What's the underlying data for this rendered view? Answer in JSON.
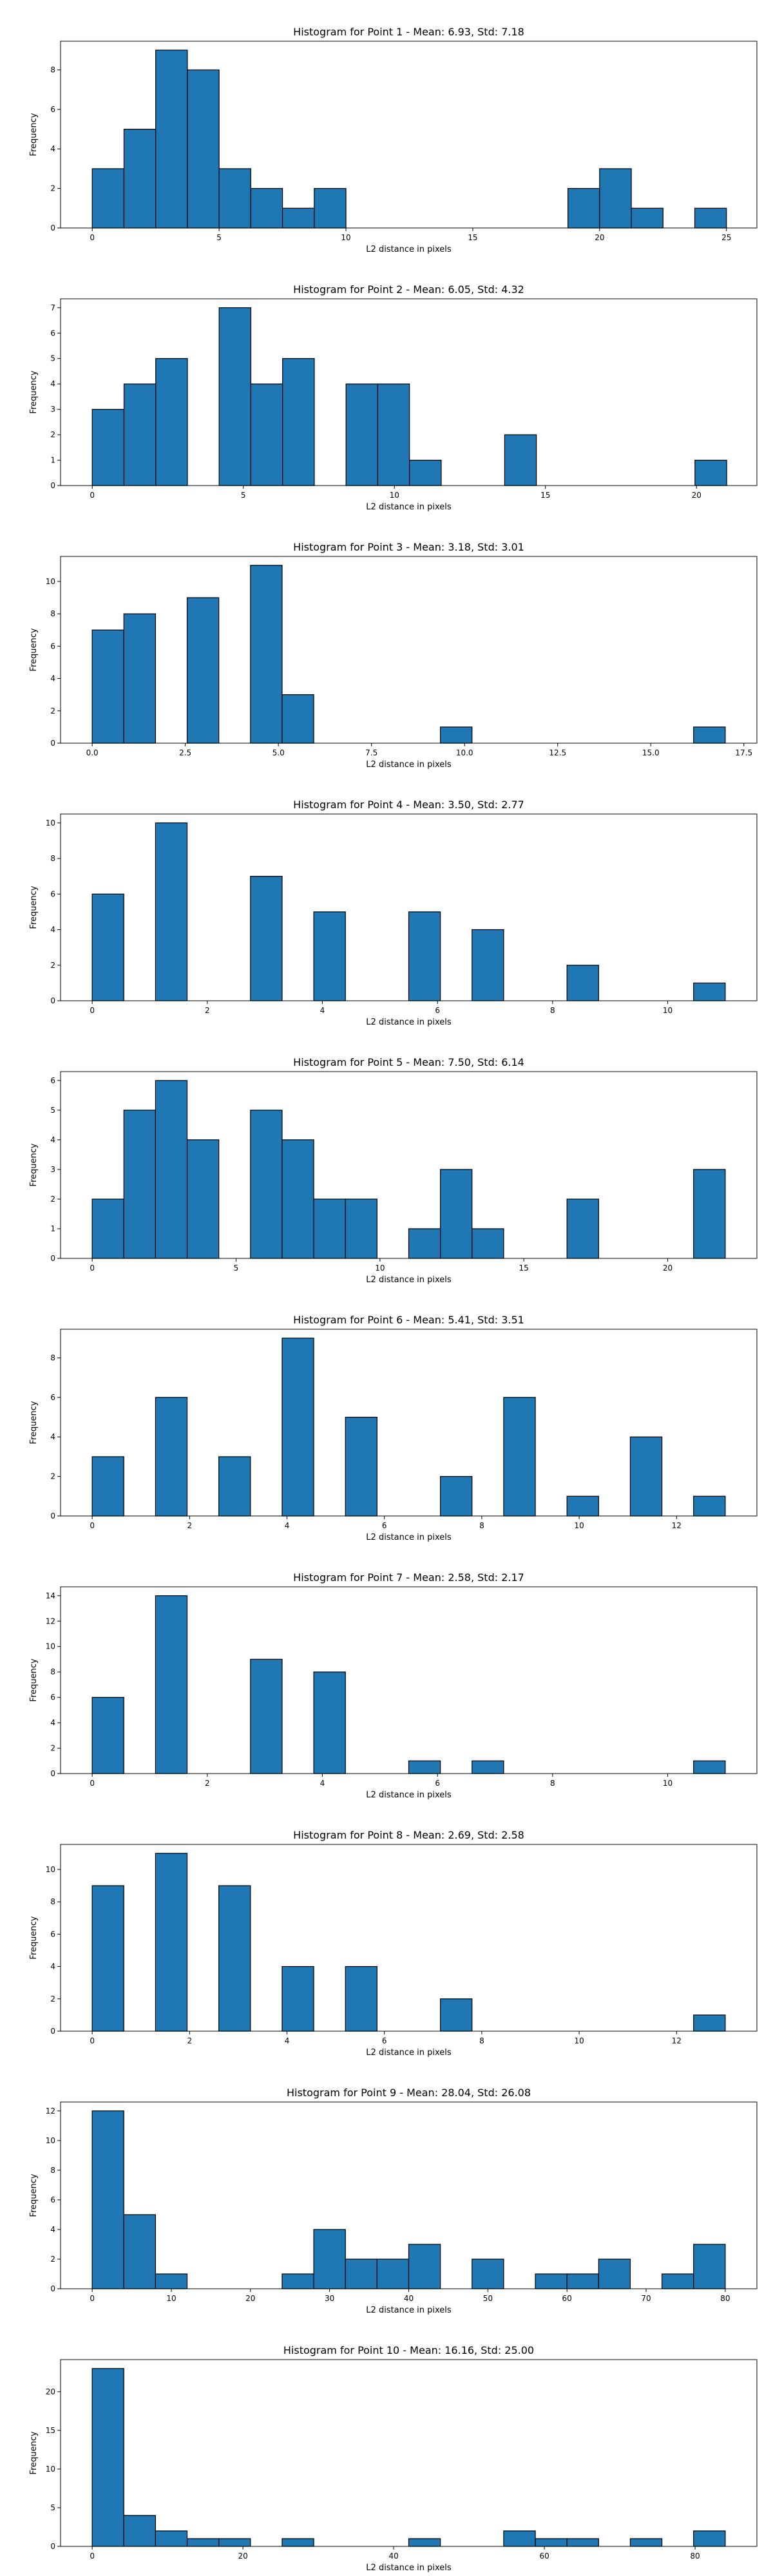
{
  "style": {
    "bar_color": "#1f77b4",
    "edge_color": "#000000",
    "axis_color": "#000000"
  },
  "chart_data": [
    {
      "type": "bar",
      "title": "Histogram for Point 1 - Mean: 6.93, Std: 7.18",
      "xlabel": "L2 distance in pixels",
      "ylabel": "Frequency",
      "xlim": [
        -1.25,
        26.2
      ],
      "ylim": [
        0,
        9.45
      ],
      "xticks": [
        0,
        5,
        10,
        15,
        20,
        25
      ],
      "yticks": [
        0,
        2,
        4,
        6,
        8
      ],
      "bins": {
        "start": 0.0,
        "width": 1.25
      },
      "values": [
        3,
        5,
        9,
        8,
        3,
        2,
        1,
        2,
        0,
        0,
        0,
        0,
        0,
        0,
        0,
        2,
        3,
        1,
        0,
        1
      ]
    },
    {
      "type": "bar",
      "title": "Histogram for Point 2 - Mean: 6.05, Std: 4.32",
      "xlabel": "L2 distance in pixels",
      "ylabel": "Frequency",
      "xlim": [
        -1.05,
        22.0
      ],
      "ylim": [
        0,
        7.35
      ],
      "xticks": [
        0,
        5,
        10,
        15,
        20
      ],
      "yticks": [
        0,
        1,
        2,
        3,
        4,
        5,
        6,
        7
      ],
      "bins": {
        "start": 0.0,
        "width": 1.05
      },
      "values": [
        3,
        4,
        5,
        0,
        7,
        4,
        5,
        0,
        4,
        4,
        1,
        0,
        0,
        2,
        0,
        0,
        0,
        0,
        0,
        1
      ]
    },
    {
      "type": "bar",
      "title": "Histogram for Point 3 - Mean: 3.18, Std: 3.01",
      "xlabel": "L2 distance in pixels",
      "ylabel": "Frequency",
      "xlim": [
        -0.85,
        17.85
      ],
      "ylim": [
        0,
        11.55
      ],
      "xticks": [
        0.0,
        2.5,
        5.0,
        7.5,
        10.0,
        12.5,
        15.0,
        17.5
      ],
      "yticks": [
        0,
        2,
        4,
        6,
        8,
        10
      ],
      "bins": {
        "start": 0.0,
        "width": 0.85
      },
      "values": [
        7,
        8,
        0,
        9,
        0,
        11,
        3,
        0,
        0,
        0,
        0,
        1,
        0,
        0,
        0,
        0,
        0,
        0,
        0,
        1
      ]
    },
    {
      "type": "bar",
      "title": "Histogram for Point 4 - Mean: 3.50, Std: 2.77",
      "xlabel": "L2 distance in pixels",
      "ylabel": "Frequency",
      "xlim": [
        -0.55,
        11.55
      ],
      "ylim": [
        0,
        10.5
      ],
      "xticks": [
        0,
        2,
        4,
        6,
        8,
        10
      ],
      "yticks": [
        0,
        2,
        4,
        6,
        8,
        10
      ],
      "bins": {
        "start": 0.0,
        "width": 0.55
      },
      "values": [
        6,
        0,
        10,
        0,
        0,
        7,
        0,
        5,
        0,
        0,
        5,
        0,
        4,
        0,
        0,
        2,
        0,
        0,
        0,
        1
      ]
    },
    {
      "type": "bar",
      "title": "Histogram for Point 5 - Mean: 7.50, Std: 6.14",
      "xlabel": "L2 distance in pixels",
      "ylabel": "Frequency",
      "xlim": [
        -1.1,
        23.1
      ],
      "ylim": [
        0,
        6.3
      ],
      "xticks": [
        0,
        5,
        10,
        15,
        20
      ],
      "yticks": [
        0,
        1,
        2,
        3,
        4,
        5,
        6
      ],
      "bins": {
        "start": 0.0,
        "width": 1.1
      },
      "values": [
        2,
        5,
        6,
        4,
        0,
        5,
        4,
        2,
        2,
        0,
        1,
        3,
        1,
        0,
        0,
        2,
        0,
        0,
        0,
        3
      ]
    },
    {
      "type": "bar",
      "title": "Histogram for Point 6 - Mean: 5.41, Std: 3.51",
      "xlabel": "L2 distance in pixels",
      "ylabel": "Frequency",
      "xlim": [
        -0.65,
        13.65
      ],
      "ylim": [
        0,
        9.45
      ],
      "xticks": [
        0,
        2,
        4,
        6,
        8,
        10,
        12
      ],
      "yticks": [
        0,
        2,
        4,
        6,
        8
      ],
      "bins": {
        "start": 0.0,
        "width": 0.65
      },
      "values": [
        3,
        0,
        6,
        0,
        3,
        0,
        9,
        0,
        5,
        0,
        0,
        2,
        0,
        6,
        0,
        1,
        0,
        4,
        0,
        1
      ]
    },
    {
      "type": "bar",
      "title": "Histogram for Point 7 - Mean: 2.58, Std: 2.17",
      "xlabel": "L2 distance in pixels",
      "ylabel": "Frequency",
      "xlim": [
        -0.55,
        11.55
      ],
      "ylim": [
        0,
        14.7
      ],
      "xticks": [
        0,
        2,
        4,
        6,
        8,
        10
      ],
      "yticks": [
        0,
        2,
        4,
        6,
        8,
        10,
        12,
        14
      ],
      "bins": {
        "start": 0.0,
        "width": 0.55
      },
      "values": [
        6,
        0,
        14,
        0,
        0,
        9,
        0,
        8,
        0,
        0,
        1,
        0,
        1,
        0,
        0,
        0,
        0,
        0,
        0,
        1
      ]
    },
    {
      "type": "bar",
      "title": "Histogram for Point 8 - Mean: 2.69, Std: 2.58",
      "xlabel": "L2 distance in pixels",
      "ylabel": "Frequency",
      "xlim": [
        -0.65,
        13.65
      ],
      "ylim": [
        0,
        11.55
      ],
      "xticks": [
        0,
        2,
        4,
        6,
        8,
        10,
        12
      ],
      "yticks": [
        0,
        2,
        4,
        6,
        8,
        10
      ],
      "bins": {
        "start": 0.0,
        "width": 0.65
      },
      "values": [
        9,
        0,
        11,
        0,
        9,
        0,
        4,
        0,
        4,
        0,
        0,
        2,
        0,
        0,
        0,
        0,
        0,
        0,
        0,
        1
      ]
    },
    {
      "type": "bar",
      "title": "Histogram for Point 9 - Mean: 28.04, Std: 26.08",
      "xlabel": "L2 distance in pixels",
      "ylabel": "Frequency",
      "xlim": [
        -4.0,
        84.0
      ],
      "ylim": [
        0,
        12.6
      ],
      "xticks": [
        0,
        10,
        20,
        30,
        40,
        50,
        60,
        70,
        80
      ],
      "yticks": [
        0,
        2,
        4,
        6,
        8,
        10,
        12
      ],
      "bins": {
        "start": 0.0,
        "width": 4.0
      },
      "values": [
        12,
        5,
        1,
        0,
        0,
        0,
        1,
        4,
        2,
        2,
        3,
        0,
        2,
        0,
        1,
        1,
        2,
        0,
        1,
        3
      ]
    },
    {
      "type": "bar",
      "title": "Histogram for Point 10 - Mean: 16.16, Std: 25.00",
      "xlabel": "L2 distance in pixels",
      "ylabel": "Frequency",
      "xlim": [
        -4.2,
        88.2
      ],
      "ylim": [
        0,
        24.15
      ],
      "xticks": [
        0,
        20,
        40,
        60,
        80
      ],
      "yticks": [
        0,
        5,
        10,
        15,
        20
      ],
      "bins": {
        "start": 0.0,
        "width": 4.2
      },
      "values": [
        23,
        4,
        2,
        1,
        1,
        0,
        1,
        0,
        0,
        0,
        1,
        0,
        0,
        2,
        1,
        1,
        0,
        1,
        0,
        2
      ]
    }
  ]
}
